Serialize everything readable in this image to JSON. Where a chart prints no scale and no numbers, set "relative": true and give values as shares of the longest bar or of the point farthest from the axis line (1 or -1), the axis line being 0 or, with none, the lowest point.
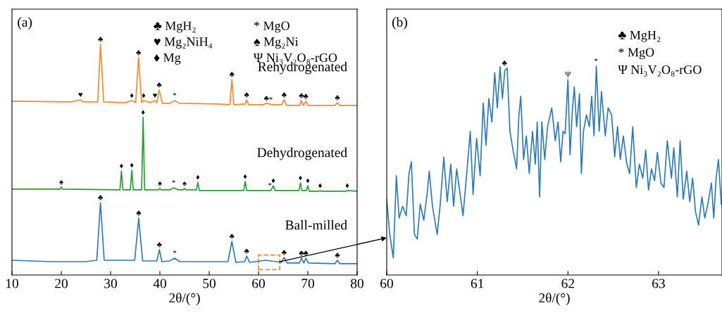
{
  "chart_data": [
    {
      "type": "line",
      "title": "(a)",
      "xlabel": "2θ/(°)",
      "relative": true,
      "xlim": [
        10,
        80
      ],
      "xticks": [
        10,
        20,
        30,
        40,
        50,
        60,
        70,
        80
      ],
      "tick_labels": "x",
      "legend": false,
      "grid": false,
      "series": [
        {
          "name": "Rehydrogenated",
          "color": "#f7892a",
          "x": [
            10,
            22,
            23.9,
            24.5,
            27.4,
            27.95,
            28.6,
            33,
            34.3,
            35.1,
            35.67,
            36.3,
            36.7,
            38,
            39,
            39.4,
            39.86,
            40.5,
            42,
            43,
            44,
            52,
            54.2,
            54.6,
            55,
            57.3,
            57.6,
            58,
            61,
            61.6,
            63,
            64.7,
            65.2,
            65.7,
            68.3,
            68.7,
            69.1,
            69.6,
            70.1,
            75.5,
            76,
            76.5,
            80
          ],
          "values": [
            0.753,
            0.75,
            0.759,
            0.75,
            0.75,
            1.0,
            0.75,
            0.747,
            0.756,
            0.747,
            0.942,
            0.747,
            0.756,
            0.747,
            0.756,
            0.747,
            0.802,
            0.744,
            0.744,
            0.756,
            0.744,
            0.741,
            0.738,
            0.848,
            0.738,
            0.741,
            0.759,
            0.738,
            0.738,
            0.744,
            0.738,
            0.738,
            0.759,
            0.735,
            0.735,
            0.756,
            0.735,
            0.753,
            0.735,
            0.735,
            0.747,
            0.735,
            0.735
          ]
        },
        {
          "name": "Dehydrogenated",
          "color": "#22a02a",
          "x": [
            10,
            19.7,
            20,
            20.3,
            31.9,
            32.2,
            32.5,
            34,
            34.3,
            34.6,
            36.3,
            36.6,
            36.9,
            39.7,
            40,
            40.3,
            42,
            42.8,
            43.8,
            44.7,
            45,
            45.3,
            47.4,
            47.7,
            48,
            57,
            57.3,
            57.6,
            62.5,
            63,
            63.4,
            68.2,
            68.5,
            68.8,
            69.7,
            70,
            70.3,
            72.3,
            72.5,
            72.7,
            77.7,
            78,
            80
          ],
          "values": [
            0.372,
            0.372,
            0.381,
            0.372,
            0.369,
            0.451,
            0.369,
            0.369,
            0.454,
            0.369,
            0.369,
            0.683,
            0.369,
            0.369,
            0.375,
            0.369,
            0.369,
            0.378,
            0.369,
            0.369,
            0.375,
            0.369,
            0.369,
            0.402,
            0.366,
            0.366,
            0.405,
            0.366,
            0.366,
            0.387,
            0.366,
            0.366,
            0.399,
            0.366,
            0.366,
            0.387,
            0.363,
            0.363,
            0.366,
            0.363,
            0.363,
            0.366,
            0.363
          ]
        },
        {
          "name": "Ball-milled",
          "color": "#2b7bba",
          "x": [
            10,
            18,
            25,
            27.2,
            27.95,
            28.7,
            34.9,
            35.7,
            36.5,
            39.4,
            39.9,
            40.4,
            42,
            43,
            44,
            53.8,
            54.6,
            55.4,
            57.2,
            57.6,
            58.2,
            61.5,
            62.5,
            64.6,
            65.2,
            65.8,
            68.3,
            68.7,
            69.2,
            69.6,
            70.1,
            75.5,
            76,
            76.5,
            80
          ],
          "values": [
            0.064,
            0.058,
            0.058,
            0.064,
            0.314,
            0.064,
            0.064,
            0.247,
            0.061,
            0.061,
            0.11,
            0.058,
            0.061,
            0.073,
            0.058,
            0.058,
            0.146,
            0.055,
            0.058,
            0.082,
            0.055,
            0.064,
            0.061,
            0.055,
            0.076,
            0.052,
            0.052,
            0.073,
            0.052,
            0.073,
            0.052,
            0.049,
            0.064,
            0.049,
            0.049
          ]
        }
      ],
      "annotations": [
        "♣ MgH₂",
        "* MgO",
        "♥ Mg₂NiH₄",
        "♠ Mg₂Ni",
        "♦ Mg",
        "Ψ Ni₃V₂O₈-rGO",
        {
          "text": "♥",
          "x": 23.9,
          "y": 0.759
        },
        {
          "text": "♣",
          "x": 27.95,
          "y": 1.0
        },
        {
          "text": "♦",
          "x": 34.3,
          "y": 0.756
        },
        {
          "text": "♣",
          "x": 35.67,
          "y": 0.942
        },
        {
          "text": "♦",
          "x": 36.7,
          "y": 0.756
        },
        {
          "text": "♥",
          "x": 39,
          "y": 0.756
        },
        {
          "text": "♣",
          "x": 39.86,
          "y": 0.802
        },
        {
          "text": "*",
          "x": 43,
          "y": 0.756
        },
        {
          "text": "♣",
          "x": 54.6,
          "y": 0.848
        },
        {
          "text": "♣",
          "x": 57.6,
          "y": 0.759
        },
        {
          "text": "♣",
          "x": 61.6,
          "y": 0.744
        },
        {
          "text": "*",
          "x": 62.5,
          "y": 0.738
        },
        {
          "text": "♣",
          "x": 65.2,
          "y": 0.759
        },
        {
          "text": "♣",
          "x": 68.7,
          "y": 0.756
        },
        {
          "text": "♣",
          "x": 69.6,
          "y": 0.753
        },
        {
          "text": "♣",
          "x": 76,
          "y": 0.747
        },
        {
          "text": "♠",
          "x": 20,
          "y": 0.381
        },
        {
          "text": "♦",
          "x": 32.2,
          "y": 0.451
        },
        {
          "text": "♦",
          "x": 34.3,
          "y": 0.454
        },
        {
          "text": "♦",
          "x": 36.6,
          "y": 0.683
        },
        {
          "text": "♠",
          "x": 40,
          "y": 0.375
        },
        {
          "text": "*",
          "x": 42.8,
          "y": 0.378
        },
        {
          "text": "♠",
          "x": 45,
          "y": 0.375
        },
        {
          "text": "♦",
          "x": 47.7,
          "y": 0.402
        },
        {
          "text": "♦",
          "x": 57.3,
          "y": 0.405
        },
        {
          "text": "*",
          "x": 62.3,
          "y": 0.366
        },
        {
          "text": "♦",
          "x": 63,
          "y": 0.387
        },
        {
          "text": "♦",
          "x": 68.5,
          "y": 0.399
        },
        {
          "text": "♦",
          "x": 70,
          "y": 0.387
        },
        {
          "text": "♦",
          "x": 72.5,
          "y": 0.366
        },
        {
          "text": "♦",
          "x": 78,
          "y": 0.366
        },
        {
          "text": "♣",
          "x": 27.95,
          "y": 0.314
        },
        {
          "text": "♣",
          "x": 35.7,
          "y": 0.247
        },
        {
          "text": "♣",
          "x": 39.9,
          "y": 0.11
        },
        {
          "text": "*",
          "x": 43,
          "y": 0.073
        },
        {
          "text": "♣",
          "x": 54.6,
          "y": 0.146
        },
        {
          "text": "♣",
          "x": 57.6,
          "y": 0.082
        },
        {
          "text": "♣",
          "x": 65.2,
          "y": 0.076
        },
        {
          "text": "♣",
          "x": 68.7,
          "y": 0.073
        },
        {
          "text": "♣",
          "x": 69.6,
          "y": 0.073
        },
        {
          "text": "♣",
          "x": 76,
          "y": 0.064
        }
      ]
    },
    {
      "type": "line",
      "title": "(b)",
      "xlabel": "2θ/(°)",
      "relative": true,
      "xlim": [
        60,
        63.7
      ],
      "xticks": [
        60,
        61,
        62,
        63
      ],
      "tick_labels": "x",
      "legend": false,
      "grid": false,
      "series": [
        {
          "color": "#2b7bba",
          "x": [
            60.0,
            60.034,
            60.073,
            60.106,
            60.137,
            60.176,
            60.215,
            60.246,
            60.272,
            60.306,
            60.337,
            60.37,
            60.409,
            60.448,
            60.469,
            60.505,
            60.557,
            60.591,
            60.63,
            60.668,
            60.707,
            60.738,
            60.772,
            60.811,
            60.842,
            60.883,
            60.922,
            60.953,
            60.992,
            61.031,
            61.065,
            61.096,
            61.127,
            61.161,
            61.192,
            61.22,
            61.251,
            61.277,
            61.303,
            61.329,
            61.36,
            61.394,
            61.433,
            61.459,
            61.479,
            61.51,
            61.541,
            61.573,
            61.609,
            61.64,
            61.661,
            61.687,
            61.712,
            61.744,
            61.775,
            61.821,
            61.86,
            61.891,
            61.92,
            61.946,
            61.969,
            62.0,
            62.023,
            62.049,
            62.07,
            62.096,
            62.127,
            62.148,
            62.171,
            62.205,
            62.236,
            62.262,
            62.288,
            62.313,
            62.345,
            62.37,
            62.412,
            62.443,
            62.482,
            62.516,
            62.547,
            62.578,
            62.611,
            62.65,
            62.681,
            62.715,
            62.754,
            62.788,
            62.826,
            62.858,
            62.889,
            62.922,
            62.956,
            62.987,
            63.026,
            63.06,
            63.096,
            63.142,
            63.168,
            63.207,
            63.238,
            63.272,
            63.311,
            63.344,
            63.376,
            63.407,
            63.441,
            63.479,
            63.51,
            63.544,
            63.583,
            63.609,
            63.635,
            63.661,
            63.692
          ],
          "values": [
            0.363,
            0.194,
            0.082,
            0.475,
            0.273,
            0.329,
            0.284,
            0.486,
            0.542,
            0.194,
            0.172,
            0.34,
            0.262,
            0.396,
            0.497,
            0.329,
            0.194,
            0.34,
            0.565,
            0.351,
            0.531,
            0.329,
            0.508,
            0.385,
            0.284,
            0.486,
            0.688,
            0.385,
            0.654,
            0.475,
            0.823,
            0.621,
            0.845,
            0.733,
            0.969,
            0.8,
            0.997,
            0.845,
            0.98,
            0.991,
            0.688,
            0.598,
            0.508,
            0.767,
            0.856,
            0.553,
            0.666,
            0.486,
            0.688,
            0.531,
            0.733,
            0.374,
            0.733,
            0.553,
            0.71,
            0.8,
            0.643,
            0.733,
            0.542,
            0.688,
            0.677,
            0.935,
            0.576,
            0.789,
            0.901,
            0.71,
            0.868,
            0.486,
            0.688,
            0.767,
            0.71,
            0.856,
            0.666,
            1.0,
            0.688,
            0.879,
            0.666,
            0.8,
            0.767,
            0.565,
            0.71,
            0.553,
            0.666,
            0.531,
            0.486,
            0.71,
            0.419,
            0.531,
            0.464,
            0.598,
            0.407,
            0.508,
            0.452,
            0.587,
            0.441,
            0.419,
            0.643,
            0.464,
            0.609,
            0.374,
            0.643,
            0.363,
            0.497,
            0.351,
            0.464,
            0.306,
            0.239,
            0.374,
            0.273,
            0.34,
            0.441,
            0.273,
            0.464,
            0.553,
            0.34
          ]
        }
      ],
      "annotations": [
        "♣ MgH₂",
        "* MgO",
        "Ψ Ni₃V₂O₈-rGO",
        {
          "text": "♣",
          "x": 61.3,
          "y": 0.991
        },
        {
          "text": "Ψ",
          "x": 62.0,
          "y": 0.935
        },
        {
          "text": "*",
          "x": 62.31,
          "y": 1.0
        }
      ]
    }
  ]
}
